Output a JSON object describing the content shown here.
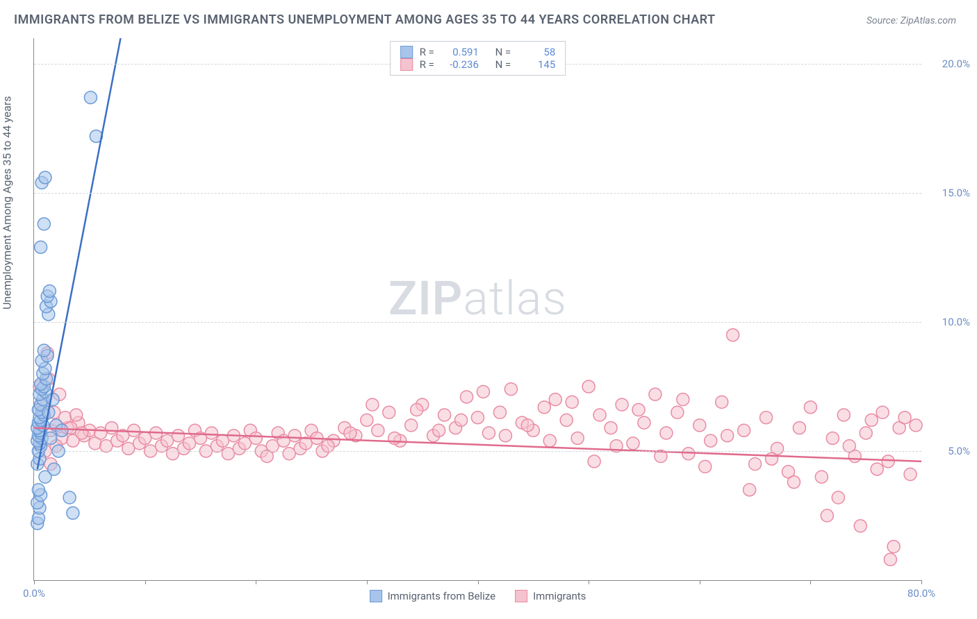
{
  "title": "IMMIGRANTS FROM BELIZE VS IMMIGRANTS UNEMPLOYMENT AMONG AGES 35 TO 44 YEARS CORRELATION CHART",
  "source_label": "Source: ZipAtlas.com",
  "ylabel": "Unemployment Among Ages 35 to 44 years",
  "watermark_a": "ZIP",
  "watermark_b": "atlas",
  "chart": {
    "type": "scatter",
    "background_color": "#ffffff",
    "grid_color": "#d0d4dc",
    "axis_color": "#888888",
    "tick_color": "#6b8cc4",
    "xlim": [
      0,
      80
    ],
    "ylim": [
      0,
      21
    ],
    "xticks": [
      {
        "v": 0,
        "label": "0.0%"
      },
      {
        "v": 80,
        "label": "80.0%"
      }
    ],
    "xtick_marks": [
      0,
      10,
      20,
      30,
      40,
      50,
      60,
      70,
      80
    ],
    "yticks": [
      {
        "v": 5,
        "label": "5.0%"
      },
      {
        "v": 10,
        "label": "10.0%"
      },
      {
        "v": 15,
        "label": "15.0%"
      },
      {
        "v": 20,
        "label": "20.0%"
      }
    ],
    "marker_radius": 9,
    "marker_stroke_width": 1.5,
    "trend_line_width": 2.5
  },
  "series": [
    {
      "key": "belize",
      "label": "Immigrants from Belize",
      "fill": "#a8c4eb",
      "stroke": "#6b9bd6",
      "line_color": "#3b6fc4",
      "R": "0.591",
      "N": "58",
      "trend": {
        "x1": 0.3,
        "y1": 4.3,
        "x2": 7.8,
        "y2": 21
      },
      "points": [
        [
          0.3,
          2.2
        ],
        [
          0.4,
          2.4
        ],
        [
          0.5,
          2.8
        ],
        [
          0.3,
          3.0
        ],
        [
          0.6,
          3.3
        ],
        [
          0.4,
          3.5
        ],
        [
          0.3,
          4.5
        ],
        [
          0.5,
          4.7
        ],
        [
          0.4,
          5.0
        ],
        [
          0.6,
          5.2
        ],
        [
          0.5,
          5.3
        ],
        [
          0.3,
          5.4
        ],
        [
          0.7,
          5.5
        ],
        [
          0.4,
          5.6
        ],
        [
          0.6,
          5.7
        ],
        [
          0.5,
          5.8
        ],
        [
          0.3,
          5.9
        ],
        [
          0.8,
          6.0
        ],
        [
          0.4,
          6.1
        ],
        [
          0.6,
          6.2
        ],
        [
          0.5,
          6.3
        ],
        [
          0.9,
          6.4
        ],
        [
          0.7,
          6.5
        ],
        [
          0.4,
          6.6
        ],
        [
          0.6,
          6.8
        ],
        [
          0.8,
          7.0
        ],
        [
          0.5,
          7.2
        ],
        [
          1.0,
          7.3
        ],
        [
          0.7,
          7.4
        ],
        [
          0.9,
          7.5
        ],
        [
          0.6,
          7.6
        ],
        [
          1.1,
          7.8
        ],
        [
          0.8,
          8.0
        ],
        [
          1.0,
          8.2
        ],
        [
          0.7,
          8.5
        ],
        [
          1.2,
          8.7
        ],
        [
          0.9,
          8.9
        ],
        [
          1.3,
          10.3
        ],
        [
          1.1,
          10.6
        ],
        [
          1.5,
          10.8
        ],
        [
          1.2,
          11.0
        ],
        [
          1.4,
          11.2
        ],
        [
          0.6,
          12.9
        ],
        [
          0.9,
          13.8
        ],
        [
          0.7,
          15.4
        ],
        [
          1.0,
          15.6
        ],
        [
          5.6,
          17.2
        ],
        [
          5.1,
          18.7
        ],
        [
          3.2,
          3.2
        ],
        [
          3.5,
          2.6
        ],
        [
          1.8,
          4.3
        ],
        [
          2.2,
          5.0
        ],
        [
          1.5,
          5.5
        ],
        [
          2.0,
          6.0
        ],
        [
          1.3,
          6.5
        ],
        [
          1.7,
          7.0
        ],
        [
          2.5,
          5.8
        ],
        [
          1.0,
          4.0
        ]
      ]
    },
    {
      "key": "immigrants",
      "label": "Immigrants",
      "fill": "#f5c2cf",
      "stroke": "#e88ba3",
      "line_color": "#e06a8c",
      "R": "-0.236",
      "N": "145",
      "trend": {
        "x1": 0,
        "y1": 5.9,
        "x2": 80,
        "y2": 4.6
      },
      "points": [
        [
          1.5,
          5.8
        ],
        [
          2.0,
          6.0
        ],
        [
          2.5,
          5.5
        ],
        [
          3.0,
          5.9
        ],
        [
          3.5,
          5.4
        ],
        [
          4.0,
          6.1
        ],
        [
          4.5,
          5.6
        ],
        [
          5.0,
          5.8
        ],
        [
          5.5,
          5.3
        ],
        [
          6.0,
          5.7
        ],
        [
          6.5,
          5.2
        ],
        [
          7.0,
          5.9
        ],
        [
          7.5,
          5.4
        ],
        [
          8.0,
          5.6
        ],
        [
          8.5,
          5.1
        ],
        [
          9.0,
          5.8
        ],
        [
          9.5,
          5.3
        ],
        [
          10.0,
          5.5
        ],
        [
          10.5,
          5.0
        ],
        [
          11.0,
          5.7
        ],
        [
          11.5,
          5.2
        ],
        [
          12.0,
          5.4
        ],
        [
          12.5,
          4.9
        ],
        [
          13.0,
          5.6
        ],
        [
          13.5,
          5.1
        ],
        [
          14.0,
          5.3
        ],
        [
          14.5,
          5.8
        ],
        [
          15.0,
          5.5
        ],
        [
          15.5,
          5.0
        ],
        [
          16.0,
          5.7
        ],
        [
          16.5,
          5.2
        ],
        [
          17.0,
          5.4
        ],
        [
          17.5,
          4.9
        ],
        [
          18.0,
          5.6
        ],
        [
          18.5,
          5.1
        ],
        [
          19.0,
          5.3
        ],
        [
          19.5,
          5.8
        ],
        [
          20.0,
          5.5
        ],
        [
          20.5,
          5.0
        ],
        [
          21.0,
          4.8
        ],
        [
          21.5,
          5.2
        ],
        [
          22.0,
          5.7
        ],
        [
          22.5,
          5.4
        ],
        [
          23.0,
          4.9
        ],
        [
          23.5,
          5.6
        ],
        [
          24.0,
          5.1
        ],
        [
          24.5,
          5.3
        ],
        [
          25.0,
          5.8
        ],
        [
          25.5,
          5.5
        ],
        [
          26.0,
          5.0
        ],
        [
          27.0,
          5.4
        ],
        [
          28.0,
          5.9
        ],
        [
          29.0,
          5.6
        ],
        [
          30.0,
          6.2
        ],
        [
          31.0,
          5.8
        ],
        [
          32.0,
          6.5
        ],
        [
          33.0,
          5.4
        ],
        [
          34.0,
          6.0
        ],
        [
          35.0,
          6.8
        ],
        [
          36.0,
          5.6
        ],
        [
          37.0,
          6.4
        ],
        [
          38.0,
          5.9
        ],
        [
          39.0,
          7.1
        ],
        [
          40.0,
          6.3
        ],
        [
          41.0,
          5.7
        ],
        [
          42.0,
          6.5
        ],
        [
          43.0,
          7.4
        ],
        [
          44.0,
          6.1
        ],
        [
          45.0,
          5.8
        ],
        [
          46.0,
          6.7
        ],
        [
          47.0,
          7.0
        ],
        [
          48.0,
          6.2
        ],
        [
          49.0,
          5.5
        ],
        [
          50.0,
          7.5
        ],
        [
          51.0,
          6.4
        ],
        [
          52.0,
          5.9
        ],
        [
          53.0,
          6.8
        ],
        [
          54.0,
          5.3
        ],
        [
          55.0,
          6.1
        ],
        [
          56.0,
          7.2
        ],
        [
          57.0,
          5.7
        ],
        [
          58.0,
          6.5
        ],
        [
          59.0,
          4.9
        ],
        [
          60.0,
          6.0
        ],
        [
          61.0,
          5.4
        ],
        [
          62.0,
          6.9
        ],
        [
          63.0,
          9.5
        ],
        [
          64.0,
          5.8
        ],
        [
          65.0,
          4.5
        ],
        [
          66.0,
          6.3
        ],
        [
          67.0,
          5.1
        ],
        [
          68.0,
          4.2
        ],
        [
          69.0,
          5.9
        ],
        [
          70.0,
          6.7
        ],
        [
          71.0,
          4.0
        ],
        [
          71.5,
          2.5
        ],
        [
          72.0,
          5.5
        ],
        [
          72.5,
          3.2
        ],
        [
          73.0,
          6.4
        ],
        [
          74.0,
          4.8
        ],
        [
          74.5,
          2.1
        ],
        [
          75.0,
          5.7
        ],
        [
          75.5,
          6.2
        ],
        [
          76.0,
          4.3
        ],
        [
          76.5,
          6.5
        ],
        [
          77.0,
          4.6
        ],
        [
          77.5,
          1.3
        ],
        [
          78.0,
          5.9
        ],
        [
          78.5,
          6.3
        ],
        [
          79.0,
          4.1
        ],
        [
          79.5,
          6.0
        ],
        [
          77.2,
          0.8
        ],
        [
          73.5,
          5.2
        ],
        [
          68.5,
          3.8
        ],
        [
          66.5,
          4.7
        ],
        [
          64.5,
          3.5
        ],
        [
          62.5,
          5.6
        ],
        [
          60.5,
          4.4
        ],
        [
          58.5,
          7.0
        ],
        [
          56.5,
          4.8
        ],
        [
          54.5,
          6.6
        ],
        [
          52.5,
          5.2
        ],
        [
          50.5,
          4.6
        ],
        [
          48.5,
          6.9
        ],
        [
          46.5,
          5.4
        ],
        [
          44.5,
          6.0
        ],
        [
          42.5,
          5.6
        ],
        [
          40.5,
          7.3
        ],
        [
          38.5,
          6.2
        ],
        [
          36.5,
          5.8
        ],
        [
          34.5,
          6.6
        ],
        [
          32.5,
          5.5
        ],
        [
          30.5,
          6.8
        ],
        [
          28.5,
          5.7
        ],
        [
          26.5,
          5.2
        ],
        [
          1.2,
          8.8
        ],
        [
          1.8,
          6.5
        ],
        [
          2.3,
          7.2
        ],
        [
          0.8,
          6.8
        ],
        [
          1.0,
          5.0
        ],
        [
          1.5,
          4.5
        ],
        [
          2.8,
          6.3
        ],
        [
          3.3,
          5.9
        ],
        [
          3.8,
          6.4
        ],
        [
          4.3,
          5.7
        ],
        [
          0.5,
          7.5
        ],
        [
          1.3,
          7.8
        ],
        [
          2.0,
          5.2
        ]
      ]
    }
  ],
  "legend_top": {
    "R_label": "R =",
    "N_label": "N ="
  }
}
